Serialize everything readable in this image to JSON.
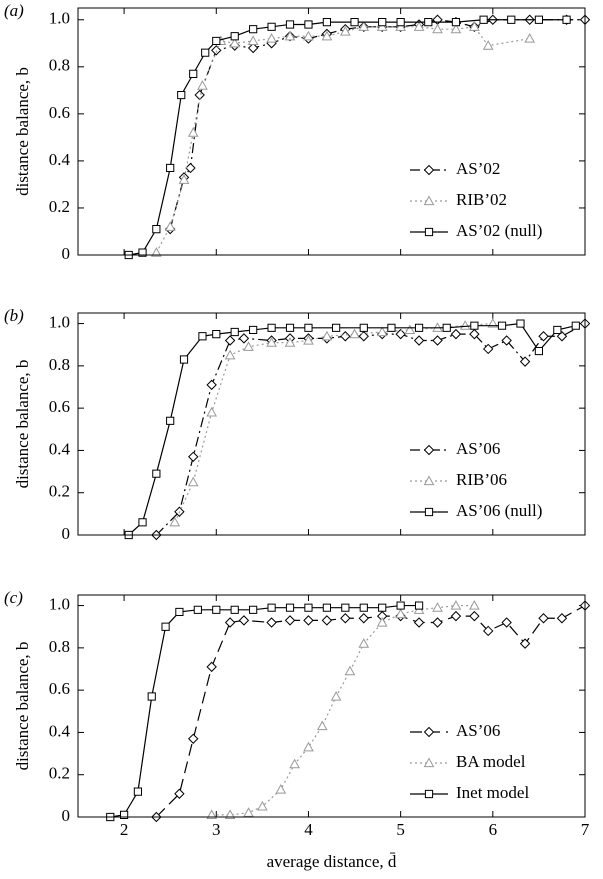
{
  "chart_data": [
    {
      "type": "line",
      "panel_label": "(a)",
      "ylabel": "distance balance, b",
      "xlim": [
        1.5,
        7
      ],
      "xticks": [
        2,
        3,
        4,
        5,
        6,
        7
      ],
      "ylim": [
        0,
        1.05
      ],
      "yticks": [
        0,
        0.2,
        0.4,
        0.6,
        0.8,
        {
          "value": 1,
          "label": "1.0"
        }
      ],
      "legend": "lower right",
      "series": [
        {
          "name": "AS’02",
          "color": "#000000",
          "marker": "diamond",
          "dash": "dashdot",
          "x": [
            2.5,
            2.65,
            2.72,
            2.82,
            3.0,
            3.2,
            3.4,
            3.6,
            3.8,
            4.0,
            4.2,
            4.4,
            4.6,
            4.8,
            5.0,
            5.2,
            5.4,
            5.6,
            5.8,
            6.0,
            6.4,
            6.8,
            7.0
          ],
          "values": [
            0.11,
            0.33,
            0.37,
            0.68,
            0.87,
            0.89,
            0.88,
            0.9,
            0.93,
            0.92,
            0.94,
            0.96,
            0.97,
            0.97,
            0.97,
            0.98,
            1.0,
            0.99,
            0.97,
            1.0,
            1.0,
            1.0,
            1.0
          ]
        },
        {
          "name": "RIB’02",
          "color": "#999999",
          "marker": "triangle",
          "dash": "dotted",
          "x": [
            2.35,
            2.5,
            2.65,
            2.75,
            2.85,
            3.05,
            3.2,
            3.4,
            3.6,
            3.8,
            4.0,
            4.2,
            4.4,
            4.6,
            4.8,
            5.0,
            5.2,
            5.4,
            5.6,
            5.8,
            5.95,
            6.4
          ],
          "values": [
            0.01,
            0.12,
            0.32,
            0.52,
            0.72,
            0.91,
            0.9,
            0.91,
            0.92,
            0.93,
            0.93,
            0.93,
            0.95,
            0.97,
            0.97,
            0.97,
            0.97,
            0.96,
            0.96,
            0.97,
            0.89,
            0.92
          ]
        },
        {
          "name": "AS’02 (null)",
          "color": "#000000",
          "marker": "square",
          "dash": "solid",
          "x": [
            2.05,
            2.2,
            2.35,
            2.5,
            2.62,
            2.75,
            2.88,
            3.0,
            3.2,
            3.4,
            3.6,
            3.8,
            4.0,
            4.2,
            4.5,
            4.8,
            5.0,
            5.3,
            5.6,
            5.9,
            6.2,
            6.5,
            6.8
          ],
          "values": [
            0.0,
            0.01,
            0.11,
            0.37,
            0.68,
            0.77,
            0.86,
            0.91,
            0.93,
            0.96,
            0.97,
            0.98,
            0.98,
            0.99,
            0.99,
            0.99,
            0.99,
            0.99,
            0.99,
            1.0,
            1.0,
            1.0,
            1.0
          ]
        }
      ]
    },
    {
      "type": "line",
      "panel_label": "(b)",
      "ylabel": "distance balance, b",
      "xlim": [
        1.5,
        7
      ],
      "xticks": [
        2,
        3,
        4,
        5,
        6,
        7
      ],
      "ylim": [
        0,
        1.05
      ],
      "yticks": [
        0,
        0.2,
        0.4,
        0.6,
        0.8,
        {
          "value": 1,
          "label": "1.0"
        }
      ],
      "legend": "lower right",
      "series": [
        {
          "name": "AS’06",
          "color": "#000000",
          "marker": "diamond",
          "dash": "dashdot",
          "x": [
            2.35,
            2.6,
            2.75,
            2.95,
            3.15,
            3.3,
            3.6,
            3.8,
            4.0,
            4.2,
            4.4,
            4.6,
            4.8,
            5.0,
            5.2,
            5.4,
            5.6,
            5.8,
            5.95,
            6.15,
            6.35,
            6.55,
            6.75,
            7.0
          ],
          "values": [
            0.0,
            0.11,
            0.37,
            0.71,
            0.92,
            0.93,
            0.92,
            0.93,
            0.93,
            0.93,
            0.94,
            0.94,
            0.95,
            0.95,
            0.92,
            0.92,
            0.95,
            0.95,
            0.88,
            0.92,
            0.82,
            0.94,
            0.94,
            1.0
          ]
        },
        {
          "name": "RIB’06",
          "color": "#999999",
          "marker": "triangle",
          "dash": "dotted",
          "x": [
            2.55,
            2.75,
            2.95,
            3.15,
            3.35,
            3.6,
            3.8,
            4.0,
            4.2,
            4.5,
            4.8,
            5.1,
            5.4,
            5.7,
            6.0
          ],
          "values": [
            0.06,
            0.25,
            0.58,
            0.85,
            0.89,
            0.91,
            0.91,
            0.92,
            0.94,
            0.95,
            0.96,
            0.97,
            0.98,
            0.99,
            1.0
          ]
        },
        {
          "name": "AS’06 (null)",
          "color": "#000000",
          "marker": "square",
          "dash": "solid",
          "x": [
            2.05,
            2.2,
            2.35,
            2.5,
            2.65,
            2.85,
            3.0,
            3.2,
            3.4,
            3.6,
            3.8,
            4.0,
            4.3,
            4.6,
            4.9,
            5.2,
            5.5,
            5.8,
            6.1,
            6.3,
            6.5,
            6.7,
            6.9
          ],
          "values": [
            0.0,
            0.06,
            0.29,
            0.54,
            0.83,
            0.94,
            0.95,
            0.96,
            0.97,
            0.98,
            0.98,
            0.98,
            0.98,
            0.98,
            0.98,
            0.98,
            0.98,
            0.99,
            0.99,
            1.0,
            0.87,
            0.97,
            0.99
          ]
        }
      ]
    },
    {
      "type": "line",
      "panel_label": "(c)",
      "ylabel": "distance balance, b",
      "xlabel": "average distance, d̄",
      "xlim": [
        1.5,
        7
      ],
      "xticks": [
        2,
        3,
        4,
        5,
        6,
        7
      ],
      "ylim": [
        0,
        1.05
      ],
      "yticks": [
        0,
        0.2,
        0.4,
        0.6,
        0.8,
        {
          "value": 1,
          "label": "1.0"
        }
      ],
      "legend": "lower right",
      "series": [
        {
          "name": "AS’06",
          "color": "#000000",
          "marker": "diamond",
          "dash": "dashed",
          "x": [
            2.35,
            2.6,
            2.75,
            2.95,
            3.15,
            3.3,
            3.6,
            3.8,
            4.0,
            4.2,
            4.4,
            4.6,
            4.8,
            5.0,
            5.2,
            5.4,
            5.6,
            5.8,
            5.95,
            6.15,
            6.35,
            6.55,
            6.75,
            7.0
          ],
          "values": [
            0.0,
            0.11,
            0.37,
            0.71,
            0.92,
            0.93,
            0.92,
            0.93,
            0.93,
            0.93,
            0.94,
            0.94,
            0.95,
            0.95,
            0.92,
            0.92,
            0.95,
            0.95,
            0.88,
            0.92,
            0.82,
            0.94,
            0.94,
            1.0
          ]
        },
        {
          "name": "BA model",
          "color": "#999999",
          "marker": "triangle",
          "dash": "dotted",
          "x": [
            2.95,
            3.15,
            3.35,
            3.5,
            3.7,
            3.85,
            4.0,
            4.15,
            4.3,
            4.45,
            4.6,
            4.8,
            5.0,
            5.2,
            5.4,
            5.6,
            5.8
          ],
          "values": [
            0.01,
            0.01,
            0.02,
            0.05,
            0.13,
            0.25,
            0.33,
            0.43,
            0.57,
            0.69,
            0.82,
            0.92,
            0.96,
            0.98,
            0.99,
            1.0,
            1.0
          ]
        },
        {
          "name": "Inet model",
          "color": "#000000",
          "marker": "square",
          "dash": "solid",
          "x": [
            1.85,
            2.0,
            2.15,
            2.3,
            2.45,
            2.6,
            2.8,
            3.0,
            3.2,
            3.4,
            3.6,
            3.8,
            4.0,
            4.2,
            4.4,
            4.6,
            4.8,
            5.0,
            5.2
          ],
          "values": [
            0.0,
            0.01,
            0.12,
            0.57,
            0.9,
            0.97,
            0.98,
            0.98,
            0.98,
            0.98,
            0.99,
            0.99,
            0.99,
            0.99,
            0.99,
            0.99,
            0.99,
            1.0,
            1.0
          ]
        }
      ]
    }
  ]
}
